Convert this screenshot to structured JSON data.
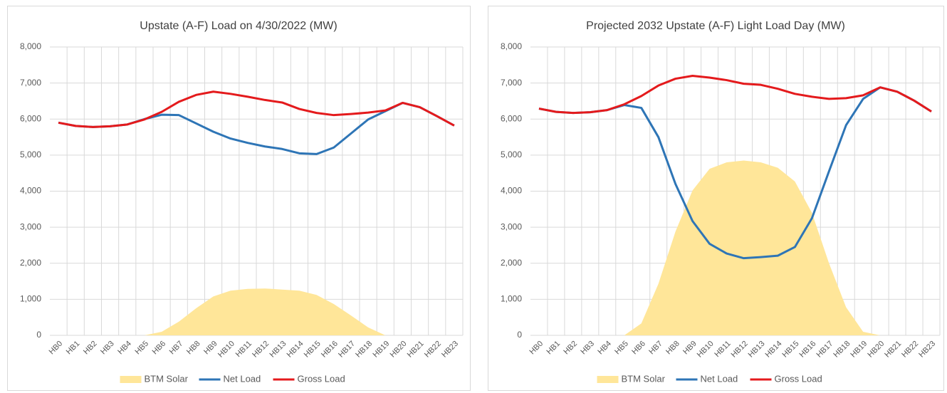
{
  "chart_data": [
    {
      "type": "line",
      "title": "Upstate (A-F) Load on 4/30/2022 (MW)",
      "categories": [
        "HB0",
        "HB1",
        "HB2",
        "HB3",
        "HB4",
        "HB5",
        "HB6",
        "HB7",
        "HB8",
        "HB9",
        "HB10",
        "HB11",
        "HB12",
        "HB13",
        "HB14",
        "HB15",
        "HB16",
        "HB17",
        "HB18",
        "HB19",
        "HB20",
        "HB21",
        "HB22",
        "HB23"
      ],
      "series": [
        {
          "name": "BTM Solar",
          "kind": "area",
          "color": "#ffe699",
          "values": [
            0,
            0,
            0,
            0,
            0,
            0,
            100,
            380,
            750,
            1080,
            1240,
            1290,
            1300,
            1270,
            1240,
            1120,
            870,
            550,
            220,
            0,
            0,
            0,
            0,
            0
          ]
        },
        {
          "name": "Net Load",
          "kind": "line",
          "color": "#2e75b6",
          "values": [
            5900,
            5810,
            5780,
            5800,
            5850,
            6000,
            6120,
            6110,
            5880,
            5650,
            5460,
            5340,
            5240,
            5170,
            5050,
            5030,
            5210,
            5600,
            5990,
            6220,
            6450,
            6330,
            6080,
            5820
          ]
        },
        {
          "name": "Gross Load",
          "kind": "line",
          "color": "#e41a1c",
          "values": [
            5900,
            5810,
            5780,
            5800,
            5850,
            5990,
            6200,
            6480,
            6670,
            6760,
            6700,
            6620,
            6530,
            6460,
            6280,
            6170,
            6110,
            6140,
            6180,
            6240,
            6450,
            6330,
            6080,
            5820
          ]
        }
      ],
      "ylim": [
        0,
        8000
      ],
      "yticks": [
        0,
        {
          "value": 1000,
          "label": "1,000"
        },
        {
          "value": 2000,
          "label": "2,000"
        },
        {
          "value": 3000,
          "label": "3,000"
        },
        {
          "value": 4000,
          "label": "4,000"
        },
        {
          "value": 5000,
          "label": "5,000"
        },
        {
          "value": 6000,
          "label": "6,000"
        },
        {
          "value": 7000,
          "label": "7,000"
        },
        {
          "value": 8000,
          "label": "8,000"
        }
      ],
      "grid": true,
      "legend": "bottom"
    },
    {
      "type": "line",
      "title": "Projected 2032 Upstate (A-F) Light Load Day (MW)",
      "categories": [
        "HB0",
        "HB1",
        "HB2",
        "HB3",
        "HB4",
        "HB5",
        "HB6",
        "HB7",
        "HB8",
        "HB9",
        "HB10",
        "HB11",
        "HB12",
        "HB13",
        "HB14",
        "HB15",
        "HB16",
        "HB17",
        "HB18",
        "HB19",
        "HB20",
        "HB21",
        "HB22",
        "HB23"
      ],
      "series": [
        {
          "name": "BTM Solar",
          "kind": "area",
          "color": "#ffe699",
          "values": [
            0,
            0,
            0,
            0,
            0,
            0,
            330,
            1430,
            2880,
            4020,
            4620,
            4800,
            4850,
            4800,
            4650,
            4270,
            3400,
            2000,
            780,
            100,
            0,
            0,
            0,
            0
          ]
        },
        {
          "name": "Net Load",
          "kind": "line",
          "color": "#2e75b6",
          "values": [
            6290,
            6200,
            6170,
            6190,
            6250,
            6390,
            6310,
            5500,
            4200,
            3170,
            2540,
            2270,
            2140,
            2170,
            2210,
            2450,
            3250,
            4550,
            5830,
            6560,
            6880,
            6760,
            6510,
            6210
          ]
        },
        {
          "name": "Gross Load",
          "kind": "line",
          "color": "#e41a1c",
          "values": [
            6290,
            6200,
            6170,
            6190,
            6250,
            6410,
            6640,
            6930,
            7120,
            7200,
            7150,
            7080,
            6980,
            6950,
            6840,
            6700,
            6620,
            6560,
            6580,
            6660,
            6880,
            6760,
            6510,
            6210
          ]
        }
      ],
      "ylim": [
        0,
        8000
      ],
      "yticks": [
        0,
        {
          "value": 1000,
          "label": "1,000"
        },
        {
          "value": 2000,
          "label": "2,000"
        },
        {
          "value": 3000,
          "label": "3,000"
        },
        {
          "value": 4000,
          "label": "4,000"
        },
        {
          "value": 5000,
          "label": "5,000"
        },
        {
          "value": 6000,
          "label": "6,000"
        },
        {
          "value": 7000,
          "label": "7,000"
        },
        {
          "value": 8000,
          "label": "8,000"
        }
      ],
      "grid": true,
      "legend": "bottom"
    }
  ]
}
